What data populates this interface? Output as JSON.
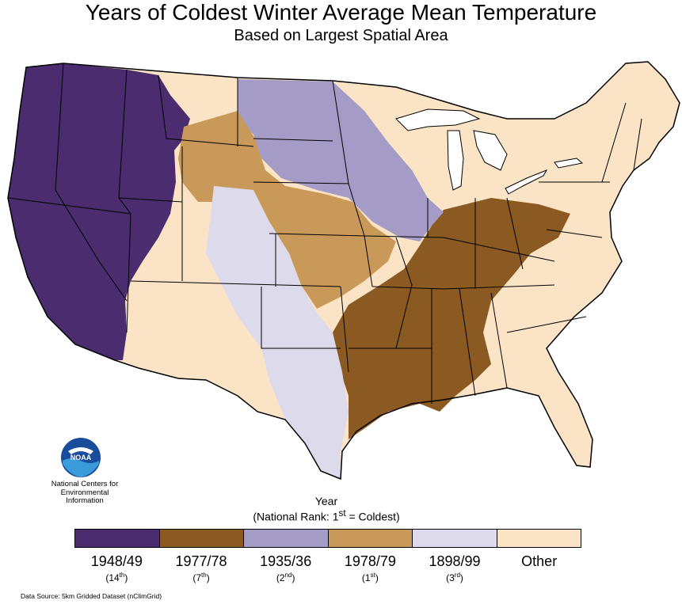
{
  "title": "Years of Coldest Winter Average Mean Temperature",
  "subtitle": "Based on Largest Spatial Area",
  "logo": {
    "badge_text": "NOAA",
    "org_lines": [
      "National Centers for",
      "Environmental",
      "Information"
    ]
  },
  "legend": {
    "title_line1": "Year",
    "title_line2_pre": "(National Rank: 1",
    "title_line2_sup": "st",
    "title_line2_post": " = Coldest)",
    "items": [
      {
        "year": "1948/49",
        "rank_num": "14",
        "rank_sup": "th",
        "color": "#4b2c6e"
      },
      {
        "year": "1977/78",
        "rank_num": "7",
        "rank_sup": "th",
        "color": "#8b5a22"
      },
      {
        "year": "1935/36",
        "rank_num": "2",
        "rank_sup": "nd",
        "color": "#a49cc7"
      },
      {
        "year": "1978/79",
        "rank_num": "1",
        "rank_sup": "st",
        "color": "#c9995a"
      },
      {
        "year": "1898/99",
        "rank_num": "3",
        "rank_sup": "rd",
        "color": "#dcdaeb"
      },
      {
        "year": "Other",
        "rank_num": "",
        "rank_sup": "",
        "color": "#fbe4c6"
      }
    ]
  },
  "source": "Data Source: 5km Gridded Dataset (nClimGrid)",
  "map_regions": [
    {
      "name": "west-coast-and-northern-rockies",
      "category": "1948/49"
    },
    {
      "name": "lower-mississippi-and-ohio-valley",
      "category": "1977/78"
    },
    {
      "name": "northern-plains-and-upper-midwest",
      "category": "1935/36"
    },
    {
      "name": "central-plains-and-wyoming",
      "category": "1978/79"
    },
    {
      "name": "southern-rockies-and-texas",
      "category": "1898/99"
    },
    {
      "name": "northeast-southwest-florida",
      "category": "Other"
    }
  ]
}
